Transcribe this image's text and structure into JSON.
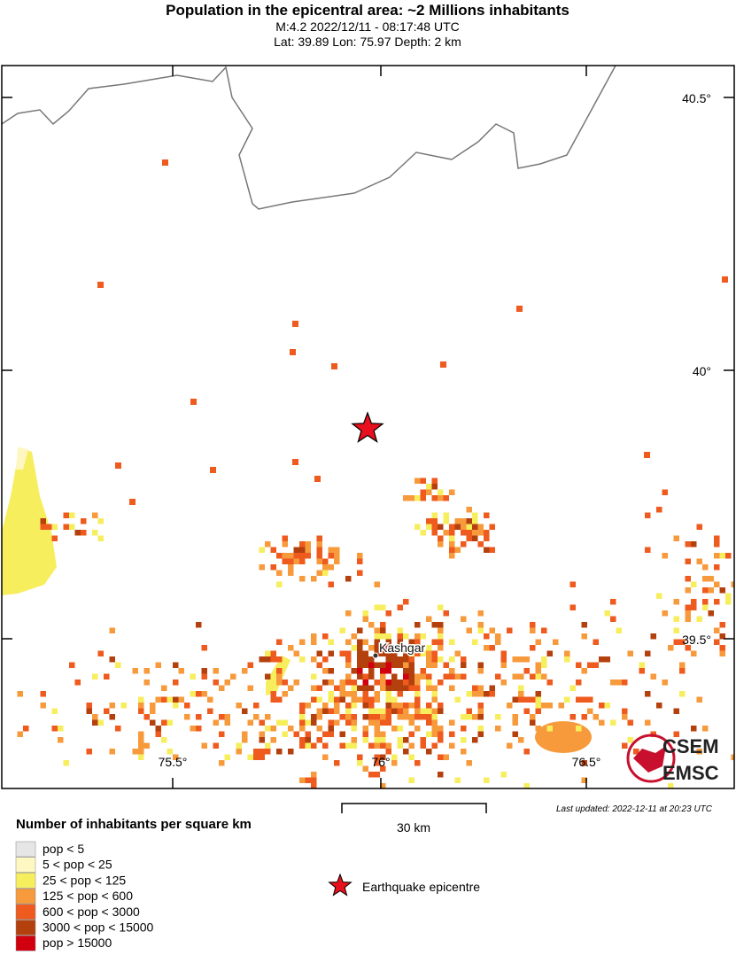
{
  "header": {
    "title": "Population in the epicentral area: ~2 Millions inhabitants",
    "line1": "M:4.2 2022/12/11 - 08:17:48 UTC",
    "line2": "Lat: 39.89 Lon: 75.97 Depth: 2 km"
  },
  "map": {
    "lat_labels": [
      "40.5°",
      "40°",
      "39.5°"
    ],
    "lon_labels": [
      "75.5°",
      "76°",
      "76.5°"
    ],
    "city": "Kashgar",
    "scale": "30 km",
    "updated": "Last updated: 2022-12-11 at 20:23 UTC",
    "logo": [
      "CSEM",
      "EMSC"
    ]
  },
  "legend": {
    "title": "Number of inhabitants per square km",
    "items": [
      {
        "label": "pop < 5",
        "color": "#e6e6e6"
      },
      {
        "label": "5 < pop < 25",
        "color": "#fff7c2"
      },
      {
        "label": "25 < pop < 125",
        "color": "#f7ee5e"
      },
      {
        "label": "125 < pop < 600",
        "color": "#f79a3c"
      },
      {
        "label": "600 < pop < 3000",
        "color": "#ef5a1e"
      },
      {
        "label": "3000 < pop < 15000",
        "color": "#b4400e"
      },
      {
        "label": "pop > 15000",
        "color": "#d2000e"
      }
    ],
    "epicentre": "Earthquake epicentre"
  }
}
